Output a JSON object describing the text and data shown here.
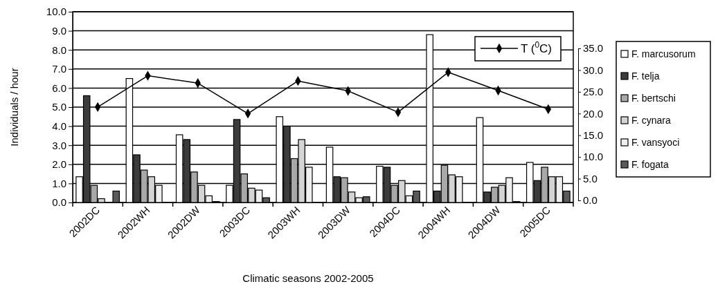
{
  "chart_data": {
    "type": "bar",
    "xlabel": "Climatic seasons 2002-2005",
    "ylabel": "Individuals / hour",
    "categories": [
      "2002DC",
      "2002WH",
      "2002DW",
      "2003DC",
      "2003WH",
      "2003DW",
      "2004DC",
      "2004WH",
      "2004DW",
      "2005DC"
    ],
    "series": [
      {
        "name": "F. marcusorum",
        "color": "#ffffff",
        "values": [
          1.35,
          6.5,
          3.55,
          0.9,
          4.5,
          2.9,
          1.9,
          8.8,
          4.45,
          2.1
        ]
      },
      {
        "name": "F. telja",
        "color": "#3c3c3c",
        "values": [
          5.6,
          2.5,
          3.3,
          4.35,
          4.0,
          1.35,
          1.85,
          0.6,
          0.55,
          1.15
        ]
      },
      {
        "name": "F. bertschi",
        "color": "#a8a8a8",
        "values": [
          0.9,
          1.7,
          1.6,
          1.5,
          2.3,
          1.3,
          0.9,
          1.95,
          0.8,
          1.85
        ]
      },
      {
        "name": "F. cynara",
        "color": "#d4d4d4",
        "values": [
          0.2,
          1.35,
          0.9,
          0.75,
          3.3,
          0.55,
          1.15,
          1.45,
          0.9,
          1.35
        ]
      },
      {
        "name": "F. vansyoci",
        "color": "#efefef",
        "values": [
          0,
          0.9,
          0.35,
          0.65,
          1.85,
          0.25,
          0.35,
          1.35,
          1.3,
          1.35
        ]
      },
      {
        "name": "F. fogata",
        "color": "#5a5a5a",
        "values": [
          0.6,
          0,
          0.05,
          0.25,
          0,
          0.3,
          0.6,
          0,
          0.05,
          0.6
        ]
      },
      {
        "name": "T ($^{0}$C)",
        "type": "line",
        "axis": "y2",
        "color": "#000000",
        "marker": "diamond",
        "values": [
          21.5,
          28.7,
          27,
          20,
          27.5,
          25.2,
          20.3,
          29.5,
          25.3,
          21
        ]
      }
    ],
    "ylim": [
      0,
      10
    ],
    "yticks": [
      {
        "value": 0,
        "label": "0.0"
      },
      {
        "value": 1,
        "label": "1.0"
      },
      {
        "value": 2,
        "label": "2.0"
      },
      {
        "value": 3,
        "label": "3.0"
      },
      {
        "value": 4,
        "label": "4.0"
      },
      {
        "value": 5,
        "label": "5.0"
      },
      {
        "value": 6,
        "label": "6.0"
      },
      {
        "value": 7,
        "label": "7.0"
      },
      {
        "value": 8,
        "label": "8.0"
      },
      {
        "value": 9,
        "label": "9.0"
      },
      {
        "value": 10,
        "label": "10.0"
      }
    ],
    "y2lim": [
      0,
      35
    ],
    "y2ticks": [
      {
        "value": 0,
        "label": "0.0"
      },
      {
        "value": 5,
        "label": "5.0"
      },
      {
        "value": 10,
        "label": "10.0"
      },
      {
        "value": 15,
        "label": "15.0"
      },
      {
        "value": 20,
        "label": "20.0"
      },
      {
        "value": 25,
        "label": "25.0"
      },
      {
        "value": 30,
        "label": "30.0"
      },
      {
        "value": 35,
        "label": "35.0"
      }
    ],
    "grid": "y",
    "legend": "right"
  }
}
